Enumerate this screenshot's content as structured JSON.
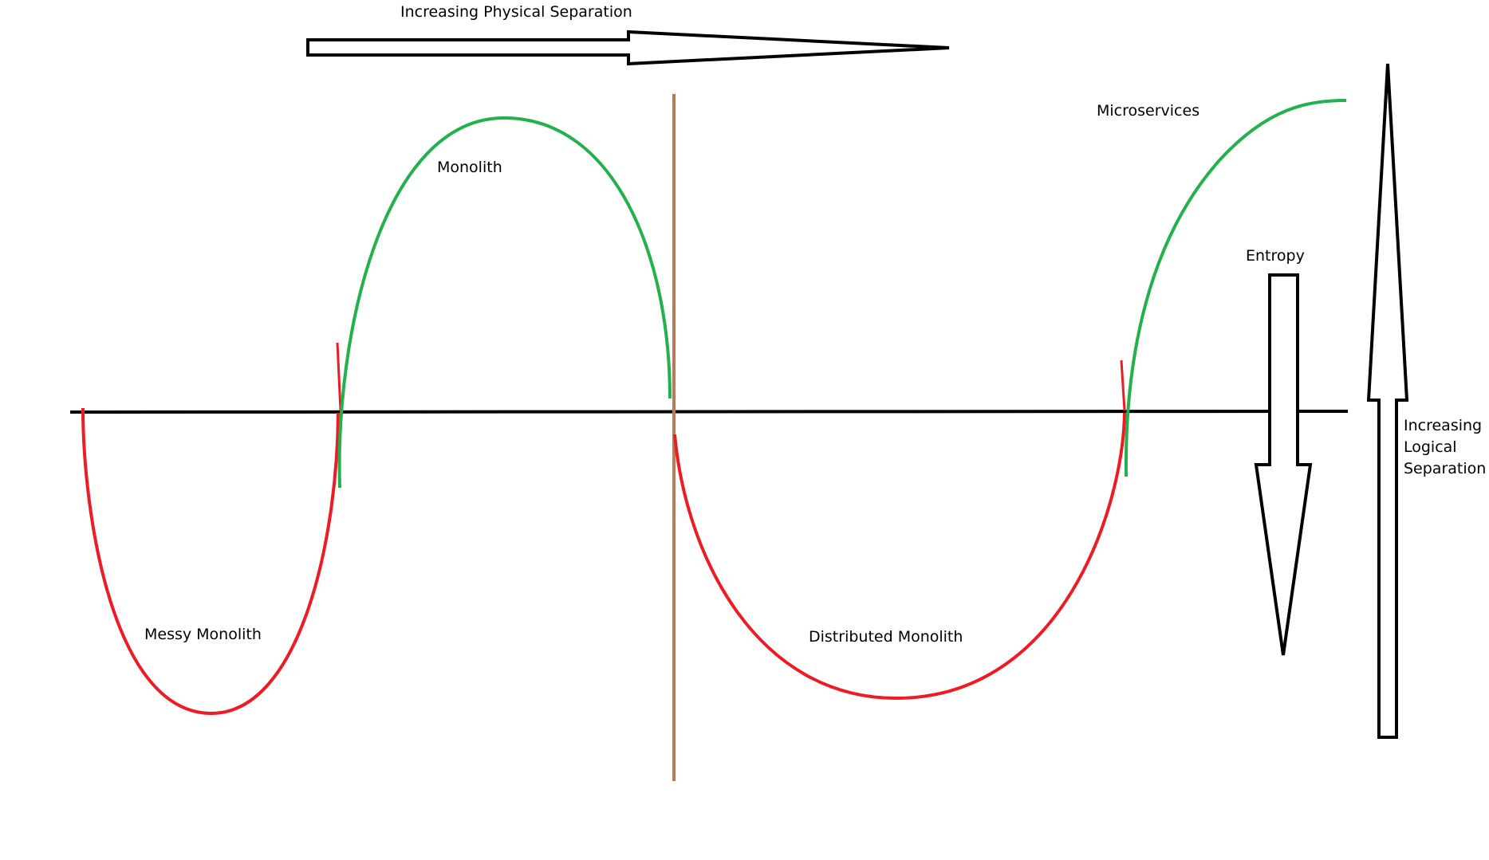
{
  "title": "Increasing Physical Separation",
  "side_label": {
    "lines": [
      "Increasing",
      "Logical",
      "Separation"
    ]
  },
  "entropy_label": "Entropy",
  "regions": {
    "messy_monolith": "Messy Monolith",
    "monolith": "Monolith",
    "distributed_monolith": "Distributed Monolith",
    "microservices": "Microservices"
  },
  "colors": {
    "good": "#22b14c",
    "bad": "#ed1c24",
    "divider": "#b97a57",
    "ink": "#000000"
  }
}
